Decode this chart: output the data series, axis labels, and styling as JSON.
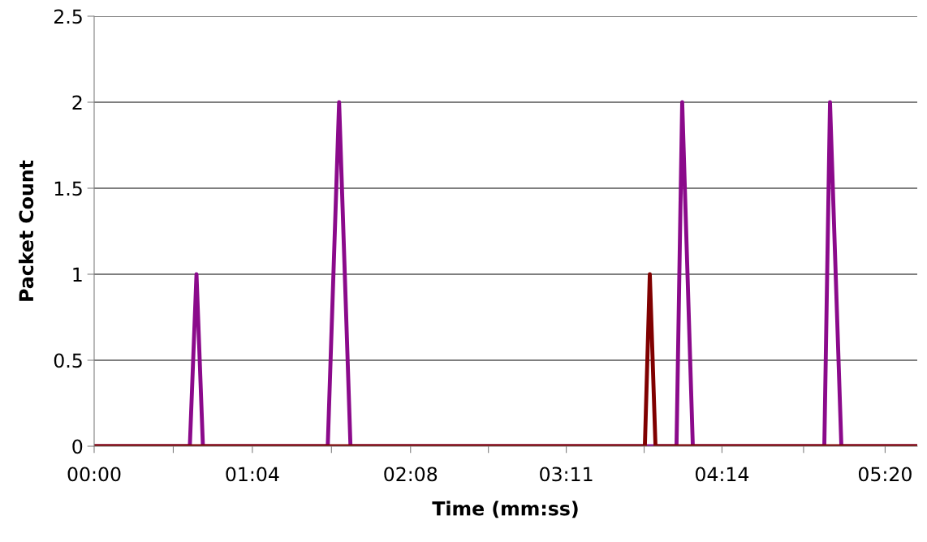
{
  "chart_data": {
    "type": "line",
    "xlabel": "Time (mm:ss)",
    "ylabel": "Packet Count",
    "xlim": [
      0,
      333
    ],
    "xticks": [
      {
        "value": 0,
        "label": "00:00"
      },
      {
        "value": 32,
        "label": null
      },
      {
        "value": 64,
        "label": "01:04"
      },
      {
        "value": 96,
        "label": null
      },
      {
        "value": 128,
        "label": "02:08"
      },
      {
        "value": 159.5,
        "label": null
      },
      {
        "value": 191,
        "label": "03:11"
      },
      {
        "value": 222.5,
        "label": null
      },
      {
        "value": 254,
        "label": "04:14"
      },
      {
        "value": 287,
        "label": null
      },
      {
        "value": 320,
        "label": "05:20"
      }
    ],
    "ylim": [
      0,
      2.5
    ],
    "yticks": [
      0,
      0.5,
      1,
      1.5,
      2,
      2.5
    ],
    "grid": "y",
    "marker": "none",
    "line_style": "solid",
    "series": [
      {
        "color": "#8b0a8b",
        "x": [
          0,
          38.7,
          41.4,
          44,
          94.5,
          99.1,
          103.7,
          235.6,
          237.9,
          242.2,
          295.4,
          297.7,
          302.3,
          333
        ],
        "values": [
          0,
          0,
          1,
          0,
          0,
          2,
          0,
          0,
          2,
          0,
          0,
          2,
          0,
          0
        ]
      },
      {
        "color": "#800000",
        "x": [
          0,
          222.8,
          224.8,
          227.1,
          333
        ],
        "values": [
          0,
          0,
          1,
          0,
          0
        ]
      }
    ]
  }
}
